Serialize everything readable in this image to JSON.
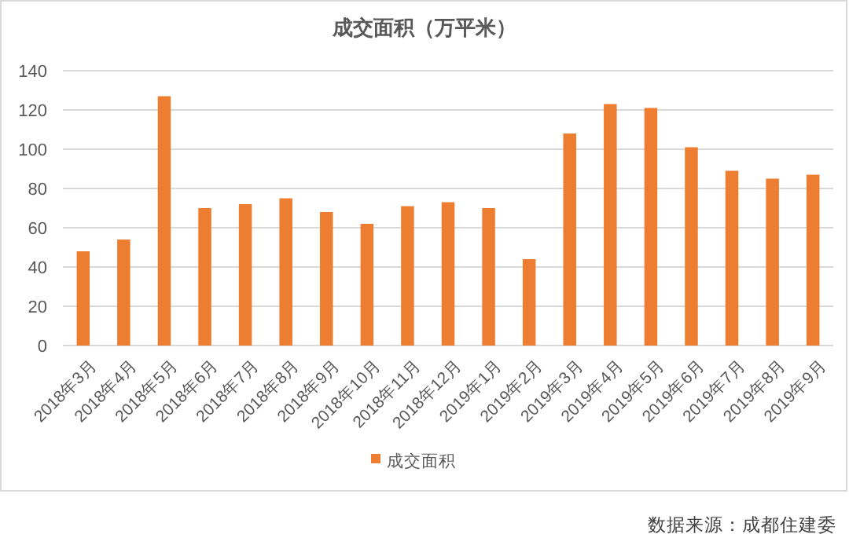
{
  "chart_data": {
    "type": "bar",
    "title": "成交面积（万平米）",
    "categories": [
      "2018年3月",
      "2018年4月",
      "2018年5月",
      "2018年6月",
      "2018年7月",
      "2018年8月",
      "2018年9月",
      "2018年10月",
      "2018年11月",
      "2018年12月",
      "2019年1月",
      "2019年2月",
      "2019年3月",
      "2019年4月",
      "2019年5月",
      "2019年6月",
      "2019年7月",
      "2019年8月",
      "2019年9月"
    ],
    "series": [
      {
        "name": "成交面积",
        "color": "#ed7d31",
        "values": [
          48,
          54,
          127,
          70,
          72,
          75,
          68,
          62,
          71,
          73,
          70,
          44,
          108,
          123,
          121,
          101,
          89,
          85,
          87
        ]
      }
    ],
    "ylim": [
      0,
      140
    ],
    "yticks": [
      0,
      20,
      40,
      60,
      80,
      100,
      120,
      140
    ],
    "grid": "y",
    "legend": "bottom",
    "annotations": [
      "数据来源：成都住建委"
    ]
  }
}
